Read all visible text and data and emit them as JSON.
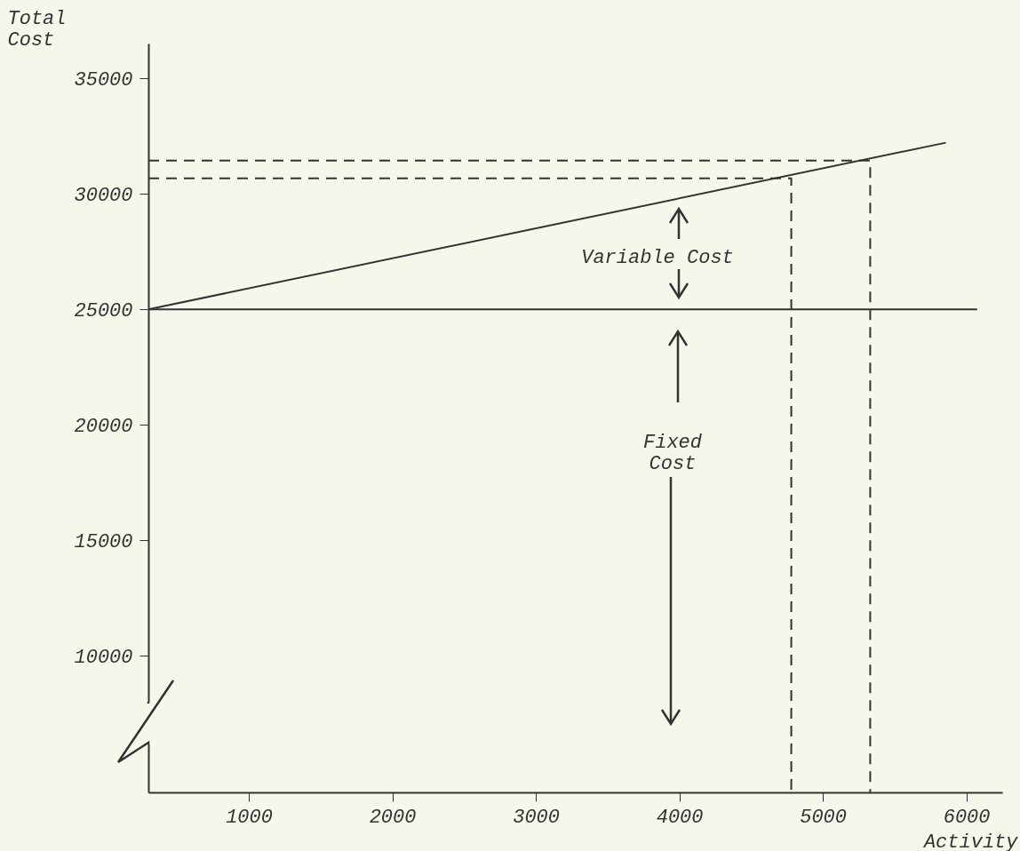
{
  "chart_data": {
    "type": "line",
    "xlabel": "Activity",
    "ylabel": "Total\nCost",
    "xlim": [
      300,
      6250
    ],
    "ylim": [
      4100,
      36500
    ],
    "xticks": [
      1000,
      2000,
      3000,
      4000,
      5000,
      6000
    ],
    "yticks": [
      10000,
      15000,
      20000,
      25000,
      30000,
      35000
    ],
    "grid": false,
    "marker": "none",
    "series": [
      {
        "color": "#333333",
        "x": [
          300,
          5857
        ],
        "values": [
          25000,
          32210
        ],
        "line_style": "solid"
      },
      {
        "color": "#333333",
        "x": [
          300,
          6075
        ],
        "values": [
          25000,
          25000
        ],
        "line_style": "solid"
      },
      {
        "color": "#333333",
        "x": [
          300,
          4780,
          4780
        ],
        "values": [
          30670,
          30670,
          4100
        ],
        "line_style": "dashed"
      },
      {
        "color": "#333333",
        "x": [
          300,
          5330,
          5330
        ],
        "values": [
          31440,
          31440,
          4100
        ],
        "line_style": "dashed"
      }
    ],
    "annotations": [
      "Variable Cost",
      "Fixed\nCost"
    ]
  }
}
